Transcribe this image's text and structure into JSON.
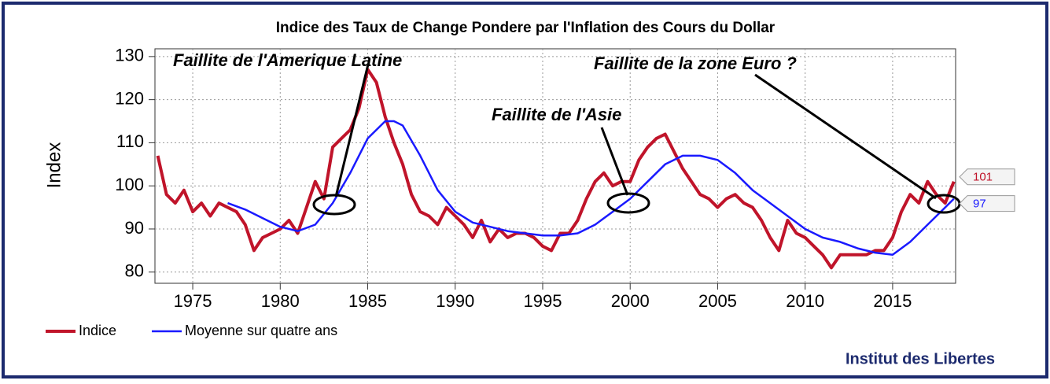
{
  "chart_data": {
    "type": "line",
    "title": "Indice des Taux de Change Pondere par l'Inflation des Cours du Dollar",
    "y_label": "Index",
    "source": "Institut des Libertes",
    "annotations": [
      "Faillite de l'Amerique Latine",
      "Faillite de la zone Euro ?",
      "Faillite de l'Asie"
    ],
    "xlim": [
      1972.84,
      2018.6
    ],
    "xticks": [
      1975,
      1980,
      1985,
      1990,
      1995,
      2000,
      2005,
      2010,
      2015
    ],
    "ylim": [
      77.4,
      131.8
    ],
    "yticks": [
      80,
      90,
      100,
      110,
      120,
      130
    ],
    "grid": true,
    "legend": "bottom-left",
    "series": [
      {
        "name": "Indice",
        "color": "#c0142a",
        "end_label": 101,
        "x": [
          1973,
          1973.5,
          1974,
          1974.5,
          1975,
          1975.5,
          1976,
          1976.5,
          1977,
          1977.5,
          1978,
          1978.5,
          1979,
          1979.5,
          1980,
          1980.5,
          1981,
          1981.5,
          1982,
          1982.5,
          1983,
          1983.5,
          1984,
          1984.5,
          1985,
          1985.5,
          1986,
          1986.5,
          1987,
          1987.5,
          1988,
          1988.5,
          1989,
          1989.5,
          1990,
          1990.5,
          1991,
          1991.5,
          1992,
          1992.5,
          1993,
          1993.5,
          1994,
          1994.5,
          1995,
          1995.5,
          1996,
          1996.5,
          1997,
          1997.5,
          1998,
          1998.5,
          1999,
          1999.5,
          2000,
          2000.5,
          2001,
          2001.5,
          2002,
          2002.5,
          2003,
          2003.5,
          2004,
          2004.5,
          2005,
          2005.5,
          2006,
          2006.5,
          2007,
          2007.5,
          2008,
          2008.5,
          2009,
          2009.5,
          2010,
          2010.5,
          2011,
          2011.5,
          2012,
          2012.5,
          2013,
          2013.5,
          2014,
          2014.5,
          2015,
          2015.5,
          2016,
          2016.5,
          2017,
          2017.5,
          2018,
          2018.5
        ],
        "values": [
          107,
          98,
          96,
          99,
          94,
          96,
          93,
          96,
          95,
          94,
          91,
          85,
          88,
          89,
          90,
          92,
          89,
          95,
          101,
          97,
          109,
          111,
          113,
          118,
          127,
          124,
          116,
          110,
          105,
          98,
          94,
          93,
          91,
          95,
          93,
          91,
          88,
          92,
          87,
          90,
          88,
          89,
          89,
          88,
          86,
          85,
          89,
          89,
          92,
          97,
          101,
          103,
          100,
          101,
          101,
          106,
          109,
          111,
          112,
          108,
          104,
          101,
          98,
          97,
          95,
          97,
          98,
          96,
          95,
          92,
          88,
          85,
          92,
          89,
          88,
          86,
          84,
          81,
          84,
          84,
          84,
          84,
          85,
          85,
          88,
          94,
          98,
          96,
          101,
          98,
          96,
          101
        ]
      },
      {
        "name": "Moyenne sur quatre ans",
        "color": "#1a1aff",
        "end_label": 97,
        "x": [
          1977,
          1978,
          1979,
          1980,
          1981,
          1982,
          1983,
          1984,
          1985,
          1986,
          1986.5,
          1987,
          1988,
          1989,
          1990,
          1991,
          1992,
          1993,
          1994,
          1995,
          1996,
          1997,
          1998,
          1999,
          2000,
          2001,
          2002,
          2003,
          2004,
          2005,
          2006,
          2007,
          2008,
          2009,
          2010,
          2011,
          2012,
          2013,
          2014,
          2015,
          2016,
          2017,
          2018,
          2018.5
        ],
        "values": [
          96,
          94.5,
          92.5,
          90.5,
          89.5,
          91,
          96,
          103,
          111,
          115,
          115,
          114,
          107,
          99,
          94,
          91.5,
          90.5,
          89.5,
          89,
          88.5,
          88.5,
          89,
          91,
          94,
          97,
          101,
          105,
          107,
          107,
          106,
          103,
          99,
          96,
          93,
          90,
          88,
          87,
          85.5,
          84.5,
          84,
          87,
          91,
          95,
          97
        ]
      }
    ]
  }
}
